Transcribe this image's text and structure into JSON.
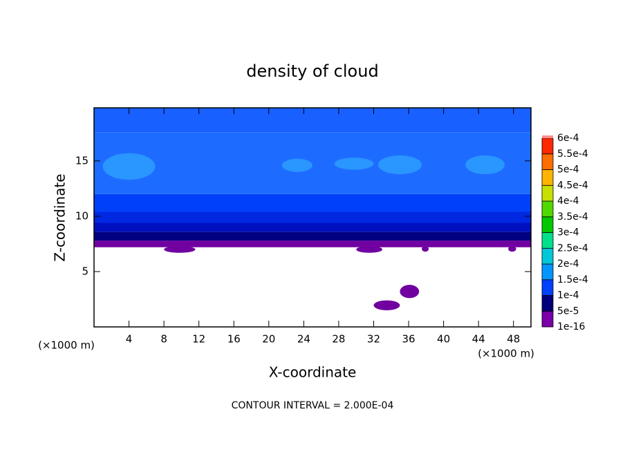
{
  "chart_data": {
    "type": "contour",
    "title": "density of cloud",
    "x_label": "X-coordinate",
    "y_label": "Z-coordinate",
    "x_unit": "(×1000 m)",
    "y_unit": "(×1000 m)",
    "footer": "CONTOUR INTERVAL = 2.000E-04",
    "xlim": [
      0,
      50
    ],
    "ylim": [
      0,
      19.8
    ],
    "xticks": [
      4,
      8,
      12,
      16,
      20,
      24,
      28,
      32,
      36,
      40,
      44,
      48
    ],
    "yticks": [
      5,
      10,
      15
    ],
    "colorbar": {
      "ticks": [
        1e-16,
        {
          "value": 5e-05,
          "label": "5e-5"
        },
        {
          "value": 0.0001,
          "label": "1e-4"
        },
        {
          "value": 0.00015,
          "label": "1.5e-4"
        },
        {
          "value": 0.0002,
          "label": "2e-4"
        },
        {
          "value": 0.00025,
          "label": "2.5e-4"
        },
        {
          "value": 0.0003,
          "label": "3e-4"
        },
        {
          "value": 0.00035,
          "label": "3.5e-4"
        },
        {
          "value": 0.0004,
          "label": "4e-4"
        },
        {
          "value": 0.00045,
          "label": "4.5e-4"
        },
        {
          "value": 0.0005,
          "label": "5e-4"
        },
        {
          "value": 0.00055,
          "label": "5.5e-4"
        },
        {
          "value": 0.0006,
          "label": "6e-4"
        }
      ],
      "colors": [
        "#7a00a8",
        "#00007a",
        "#0040ff",
        "#0096ff",
        "#00c8d8",
        "#00e08a",
        "#00c800",
        "#50d800",
        "#c8e000",
        "#ffb400",
        "#ff6e00",
        "#ff2800"
      ],
      "top_color": "#ff8c8c"
    },
    "layers": [
      {
        "z": [
          7.2,
          7.8
        ],
        "value": 1e-16,
        "color": "#7000a0"
      },
      {
        "z": [
          7.8,
          8.6
        ],
        "value": 5e-05,
        "color": "#000080"
      },
      {
        "z": [
          8.6,
          9.4
        ],
        "value": 7e-05,
        "color": "#0010c0"
      },
      {
        "z": [
          9.4,
          10.4
        ],
        "value": 9e-05,
        "color": "#0028e0"
      },
      {
        "z": [
          10.4,
          12
        ],
        "value": 0.0001,
        "color": "#0040f8"
      },
      {
        "z": [
          12,
          17.6
        ],
        "value": 0.00012,
        "color": "#1e6cff"
      },
      {
        "z": [
          17.6,
          19.8
        ],
        "value": 0.00011,
        "color": "#1860ff"
      }
    ],
    "patches": [
      {
        "x": [
          1,
          7
        ],
        "z": [
          13.3,
          15.7
        ],
        "value": 0.00015,
        "color": "#2a96ff"
      },
      {
        "x": [
          21.5,
          25
        ],
        "z": [
          14,
          15.2
        ],
        "value": 0.00015,
        "color": "#2a96ff"
      },
      {
        "x": [
          27.5,
          32
        ],
        "z": [
          14.2,
          15.3
        ],
        "value": 0.00015,
        "color": "#2a96ff"
      },
      {
        "x": [
          32.5,
          37.5
        ],
        "z": [
          13.8,
          15.5
        ],
        "value": 0.00015,
        "color": "#2a96ff"
      },
      {
        "x": [
          42.5,
          47
        ],
        "z": [
          13.8,
          15.5
        ],
        "value": 0.00015,
        "color": "#2a96ff"
      },
      {
        "x": [
          8,
          11.6
        ],
        "z": [
          6.7,
          7.3
        ],
        "value": 1e-16,
        "color": "#7000a0"
      },
      {
        "x": [
          30,
          33
        ],
        "z": [
          6.7,
          7.3
        ],
        "value": 1e-16,
        "color": "#7000a0"
      },
      {
        "x": [
          37.5,
          38.3
        ],
        "z": [
          6.8,
          7.3
        ],
        "value": 1e-16,
        "color": "#7000a0"
      },
      {
        "x": [
          47.4,
          48.3
        ],
        "z": [
          6.8,
          7.3
        ],
        "value": 1e-16,
        "color": "#7000a0"
      },
      {
        "x": [
          32,
          35
        ],
        "z": [
          1.5,
          2.4
        ],
        "value": 1e-16,
        "color": "#7000a0"
      },
      {
        "x": [
          35,
          37.2
        ],
        "z": [
          2.6,
          3.8
        ],
        "value": 1e-16,
        "color": "#7000a0"
      }
    ]
  }
}
